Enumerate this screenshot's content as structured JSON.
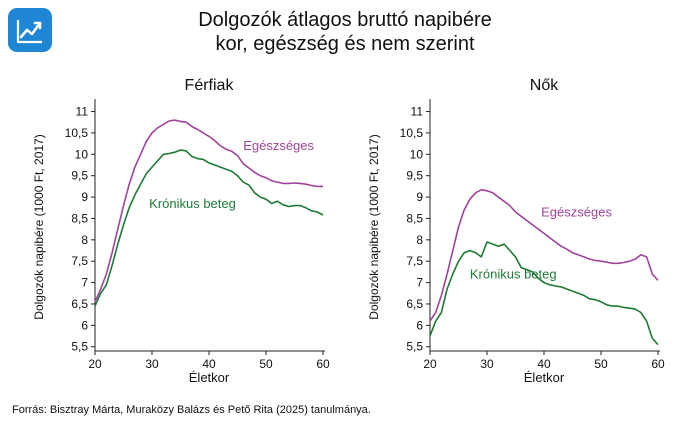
{
  "header": {
    "title_line1": "Dolgozók átlagos bruttó napibére",
    "title_line2": "kor, egészség és nem szerint",
    "logo_icon": "trend-chart-icon",
    "logo_color": "#1f86d6"
  },
  "source": "Forrás: Bisztray Márta, Muraközy Balázs és Pető Rita (2025) tanulmánya.",
  "colors": {
    "healthy": "#a0439b",
    "chronic": "#1d7a36",
    "axis": "#222222"
  },
  "chart_data": [
    {
      "type": "line",
      "title": "Férfiak",
      "xlabel": "Életkor",
      "ylabel": "Dolgozók napibére (1000 Ft, 2017)",
      "xlim": [
        20,
        60
      ],
      "ylim": [
        5.4,
        11.2
      ],
      "xticks": [
        "20",
        "30",
        "40",
        "50",
        "60"
      ],
      "xtick_values": [
        20,
        30,
        40,
        50,
        60
      ],
      "yticks": [
        "5,5",
        "6",
        "6,5",
        "7",
        "7,5",
        "8",
        "8,5",
        "9",
        "9,5",
        "10",
        "10,5",
        "11"
      ],
      "ytick_values": [
        5.5,
        6,
        6.5,
        7,
        7.5,
        8,
        8.5,
        9,
        9.5,
        10,
        10.5,
        11
      ],
      "x": [
        20,
        21,
        22,
        23,
        24,
        25,
        26,
        27,
        28,
        29,
        30,
        31,
        32,
        33,
        34,
        35,
        36,
        37,
        38,
        39,
        40,
        41,
        42,
        43,
        44,
        45,
        46,
        47,
        48,
        49,
        50,
        51,
        52,
        53,
        54,
        55,
        56,
        57,
        58,
        59,
        60
      ],
      "series": [
        {
          "name": "Egészséges",
          "label_anchor": [
            46,
            10.1
          ],
          "values": [
            6.55,
            6.85,
            7.2,
            7.7,
            8.25,
            8.8,
            9.3,
            9.7,
            10.0,
            10.3,
            10.5,
            10.62,
            10.7,
            10.78,
            10.8,
            10.77,
            10.75,
            10.65,
            10.58,
            10.5,
            10.42,
            10.32,
            10.2,
            10.12,
            10.07,
            9.97,
            9.78,
            9.68,
            9.58,
            9.5,
            9.45,
            9.38,
            9.35,
            9.32,
            9.32,
            9.33,
            9.32,
            9.3,
            9.27,
            9.25,
            9.25
          ]
        },
        {
          "name": "Krónikus beteg",
          "label_anchor": [
            29.5,
            8.75
          ],
          "values": [
            6.45,
            6.75,
            6.95,
            7.4,
            7.9,
            8.35,
            8.75,
            9.05,
            9.3,
            9.55,
            9.7,
            9.85,
            10.0,
            10.02,
            10.05,
            10.1,
            10.08,
            9.95,
            9.9,
            9.88,
            9.8,
            9.75,
            9.7,
            9.65,
            9.6,
            9.5,
            9.35,
            9.28,
            9.1,
            9.0,
            8.95,
            8.85,
            8.9,
            8.82,
            8.78,
            8.8,
            8.8,
            8.75,
            8.68,
            8.65,
            8.58
          ]
        }
      ]
    },
    {
      "type": "line",
      "title": "Nők",
      "xlabel": "Életkor",
      "ylabel": "Dolgozók napibére (1000 Ft, 2017)",
      "xlim": [
        20,
        60
      ],
      "ylim": [
        5.4,
        11.2
      ],
      "xticks": [
        "20",
        "30",
        "40",
        "50",
        "60"
      ],
      "xtick_values": [
        20,
        30,
        40,
        50,
        60
      ],
      "yticks": [
        "5,5",
        "6",
        "6,5",
        "7",
        "7,5",
        "8",
        "8,5",
        "9",
        "9,5",
        "10",
        "10,5",
        "11"
      ],
      "ytick_values": [
        5.5,
        6,
        6.5,
        7,
        7.5,
        8,
        8.5,
        9,
        9.5,
        10,
        10.5,
        11
      ],
      "x": [
        20,
        21,
        22,
        23,
        24,
        25,
        26,
        27,
        28,
        29,
        30,
        31,
        32,
        33,
        34,
        35,
        36,
        37,
        38,
        39,
        40,
        41,
        42,
        43,
        44,
        45,
        46,
        47,
        48,
        49,
        50,
        51,
        52,
        53,
        54,
        55,
        56,
        57,
        58,
        59,
        60
      ],
      "series": [
        {
          "name": "Egészséges",
          "label_anchor": [
            39.5,
            8.55
          ],
          "values": [
            6.1,
            6.3,
            6.7,
            7.2,
            7.75,
            8.3,
            8.7,
            8.95,
            9.1,
            9.17,
            9.15,
            9.1,
            9.0,
            8.9,
            8.8,
            8.65,
            8.55,
            8.45,
            8.35,
            8.25,
            8.15,
            8.05,
            7.95,
            7.85,
            7.78,
            7.7,
            7.65,
            7.6,
            7.55,
            7.52,
            7.5,
            7.48,
            7.45,
            7.45,
            7.47,
            7.5,
            7.55,
            7.65,
            7.6,
            7.2,
            7.05
          ]
        },
        {
          "name": "Krónikus beteg",
          "label_anchor": [
            27,
            7.1
          ],
          "values": [
            5.75,
            6.1,
            6.3,
            6.85,
            7.2,
            7.5,
            7.7,
            7.75,
            7.7,
            7.6,
            7.95,
            7.9,
            7.85,
            7.9,
            7.75,
            7.6,
            7.35,
            7.3,
            7.25,
            7.1,
            7.0,
            6.95,
            6.92,
            6.9,
            6.85,
            6.8,
            6.75,
            6.7,
            6.62,
            6.6,
            6.55,
            6.48,
            6.45,
            6.45,
            6.42,
            6.4,
            6.38,
            6.3,
            6.1,
            5.7,
            5.55
          ]
        }
      ]
    }
  ]
}
